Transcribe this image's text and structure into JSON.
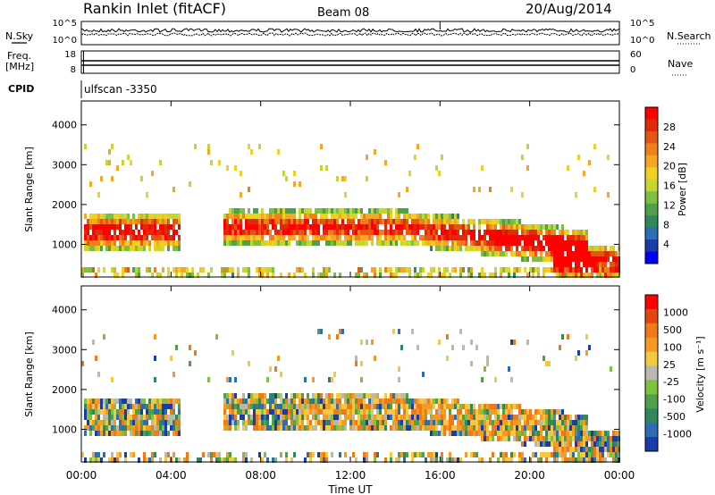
{
  "header": {
    "station": "Rankin Inlet (fitACF)",
    "beam": "Beam 08",
    "date": "20/Aug/2014"
  },
  "noise_panel": {
    "left_label": "N.Sky",
    "right_label": "N.Search",
    "left_ticks": [
      "10^5",
      "10^0"
    ],
    "right_ticks": [
      "10^5",
      "10^0"
    ]
  },
  "freq_panel": {
    "left_label_1": "Freq.",
    "left_label_2": "[MHz]",
    "right_label": "Nave",
    "left_ticks": [
      "18",
      "8"
    ],
    "right_ticks": [
      "60",
      "0"
    ]
  },
  "cpid": {
    "label": "CPID",
    "value": "ulfscan -3350"
  },
  "chart_data": [
    {
      "type": "heatmap",
      "parameter": "Power",
      "ylabel": "Slant Range [km]",
      "ylim": [
        180,
        4600
      ],
      "yticks": [
        1000,
        2000,
        3000,
        4000
      ],
      "xlabel": "",
      "xlim_hours": [
        0,
        24
      ],
      "colorbar": {
        "label": "Power [dB]",
        "ticks": [
          "28",
          "24",
          "20",
          "16",
          "12",
          "8",
          "4"
        ],
        "colors": [
          "#0000ff",
          "#1a3ca8",
          "#2d6db4",
          "#2e8a5c",
          "#4ea04a",
          "#7fbf3f",
          "#c6d62f",
          "#f0d020",
          "#f5a623",
          "#f0801a",
          "#e85510",
          "#e02a08",
          "#ff0000"
        ],
        "range": [
          0,
          30
        ]
      }
    },
    {
      "type": "heatmap",
      "parameter": "Velocity",
      "ylabel": "Slant Range [km]",
      "ylim": [
        180,
        4600
      ],
      "yticks": [
        1000,
        2000,
        3000,
        4000
      ],
      "xlabel": "Time UT",
      "xlim_hours": [
        0,
        24
      ],
      "xtick_labels": [
        "00:00",
        "04:00",
        "08:00",
        "12:00",
        "16:00",
        "20:00",
        "00:00"
      ],
      "colorbar": {
        "label": "Velocity [m s⁻¹]",
        "ticks": [
          "1000",
          "500",
          "100",
          "25",
          "-25",
          "-100",
          "-500",
          "-1000"
        ],
        "colors": [
          "#1a3ca8",
          "#2d6db4",
          "#2e8a5c",
          "#4ea04a",
          "#7fc23f",
          "#b9b9ad",
          "#f5c842",
          "#f59a23",
          "#f07a1a",
          "#e8450e",
          "#ff0000"
        ],
        "range": [
          -1000,
          1000
        ]
      }
    }
  ]
}
